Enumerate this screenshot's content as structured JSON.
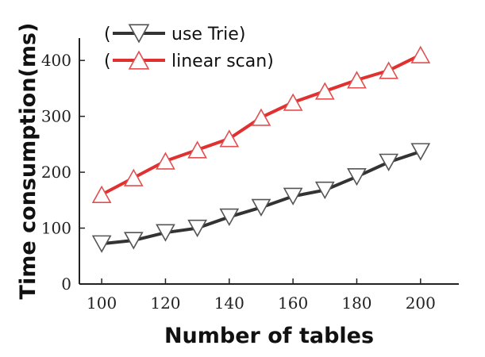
{
  "chart_data": {
    "type": "line",
    "xlabel": "Number of tables",
    "ylabel": "Time consumption(ms)",
    "x": [
      100,
      110,
      120,
      130,
      140,
      150,
      160,
      170,
      180,
      190,
      200
    ],
    "xlim": [
      93,
      212
    ],
    "ylim": [
      0,
      440
    ],
    "xticks": [
      100,
      120,
      140,
      160,
      180,
      200
    ],
    "yticks": [
      0,
      100,
      200,
      300,
      400
    ],
    "grid": false,
    "legend_position": "top-left",
    "series": [
      {
        "name": "use Trie",
        "marker": "triangle-down",
        "color": "#333333",
        "values": [
          72,
          78,
          92,
          100,
          120,
          137,
          157,
          168,
          192,
          218,
          237
        ]
      },
      {
        "name": "linear scan",
        "marker": "triangle-up",
        "color": "#e03030",
        "values": [
          160,
          190,
          220,
          240,
          260,
          298,
          325,
          345,
          365,
          382,
          410
        ]
      }
    ]
  }
}
